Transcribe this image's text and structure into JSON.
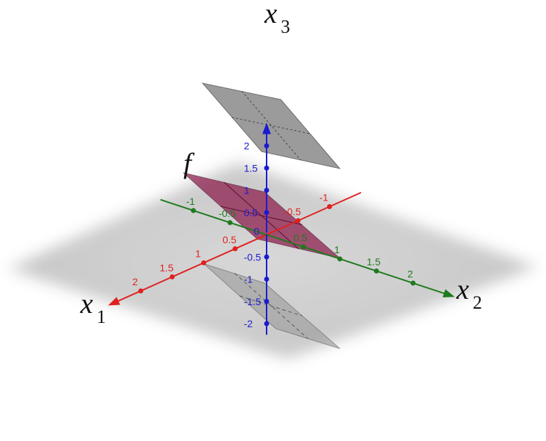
{
  "axes": {
    "x1": {
      "label": "x",
      "subscript": "1",
      "color": "#e02020",
      "ticks": [
        -1,
        -0.5,
        0.5,
        1,
        1.5,
        2
      ],
      "tick_labels": [
        "-1",
        "-0.5",
        "0.5",
        "1",
        "1.5",
        "2"
      ]
    },
    "x2": {
      "label": "x",
      "subscript": "2",
      "color": "#1e7a1e",
      "ticks": [
        -1,
        -0.5,
        0.5,
        1,
        1.5,
        2
      ],
      "tick_labels": [
        "-1",
        "-0.5",
        "0.5",
        "1",
        "1.5",
        "2"
      ]
    },
    "x3": {
      "label": "x",
      "subscript": "3",
      "color": "#1a1ad0",
      "ticks": [
        -2,
        -1.5,
        -1,
        -0.5,
        0.5,
        1,
        1.5,
        2
      ],
      "tick_labels": [
        "-2",
        "-1.5",
        "-1",
        "-0.5",
        "0.5",
        "1",
        "1.5",
        "2"
      ]
    }
  },
  "origin_label": "0",
  "plane_label": "f",
  "colors": {
    "plane_f": "#8b1a4a",
    "plane_gray": "#8a8a8a",
    "floor": "#c8c8c8"
  }
}
